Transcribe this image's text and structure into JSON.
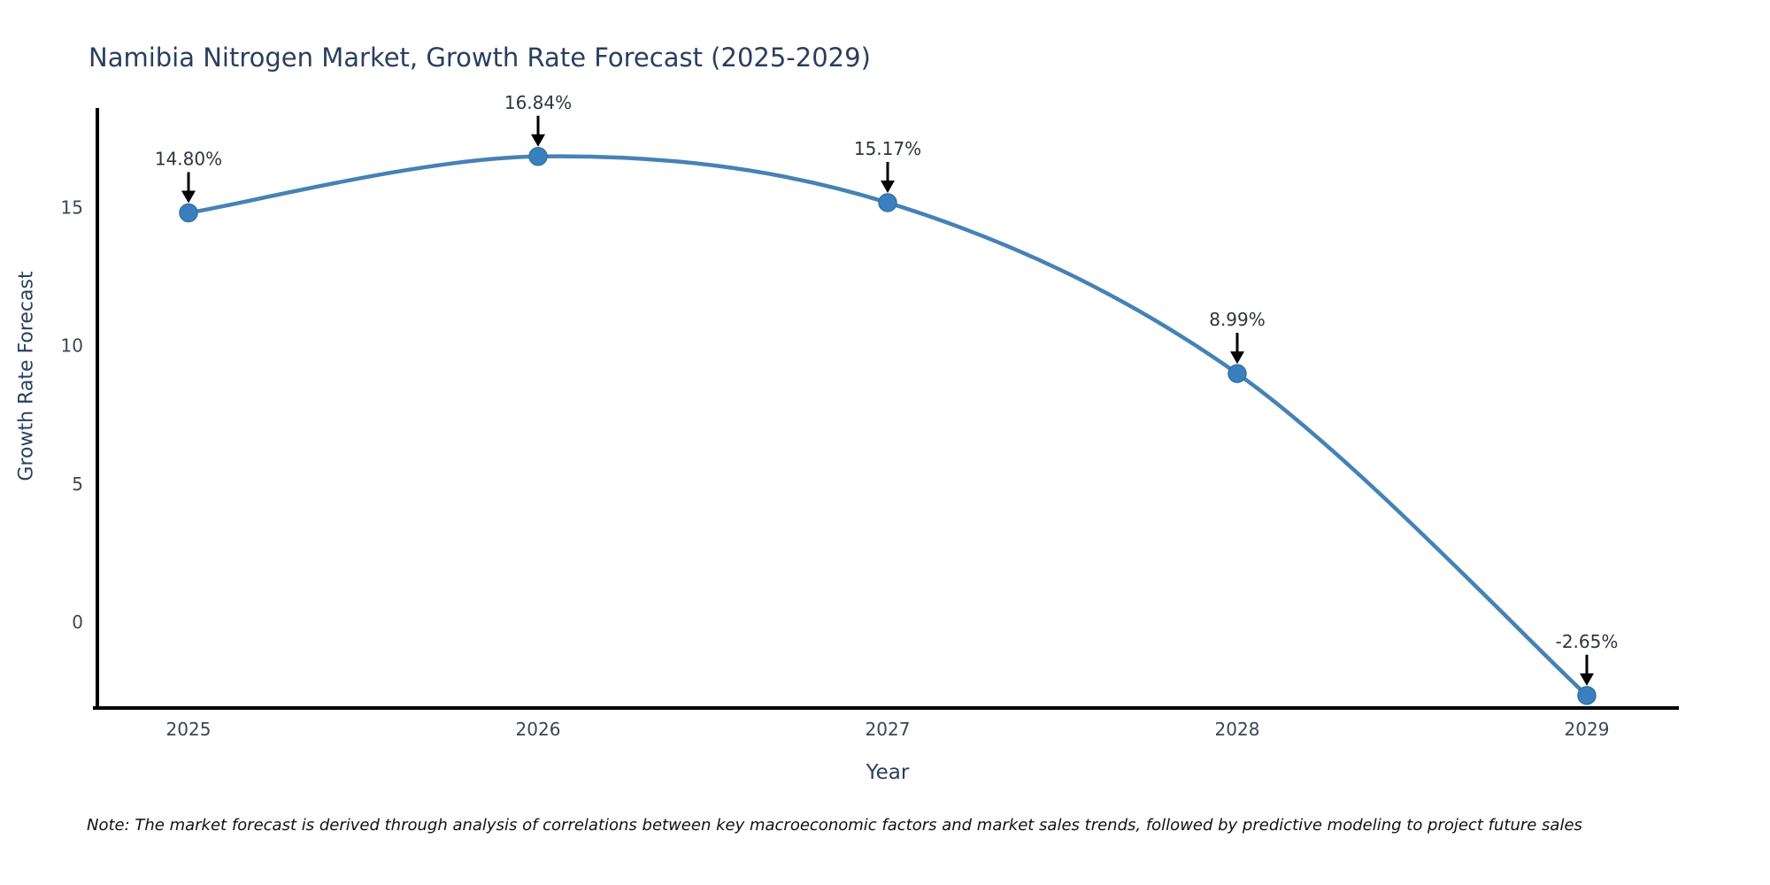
{
  "chart_data": {
    "type": "line",
    "title": "Namibia Nitrogen Market, Growth Rate Forecast (2025-2029)",
    "xlabel": "Year",
    "ylabel": "Growth Rate Forecast",
    "categories": [
      "2025",
      "2026",
      "2027",
      "2028",
      "2029"
    ],
    "values": [
      14.8,
      16.84,
      15.17,
      8.99,
      -2.65
    ],
    "point_labels": [
      "14.80%",
      "16.84%",
      "15.17%",
      "8.99%",
      "-2.65%"
    ],
    "yticks": [
      0,
      5,
      10,
      15
    ],
    "ylim": [
      -3.1,
      18.6
    ],
    "grid": false,
    "legend": false,
    "line_shape": "spline",
    "colors": {
      "line": "#4682b4",
      "marker_fill": "#3a80c1",
      "marker_stroke": "#34739e",
      "axis": "#000000",
      "title_text": "#2a3f5f",
      "tick_text": "#3b4654",
      "annotation_text": "#2f3440",
      "annotation_arrow": "#000000"
    }
  },
  "note": "Note: The market forecast is derived through analysis of correlations between key macroeconomic factors and market sales trends, followed by predictive modeling to project future sales"
}
